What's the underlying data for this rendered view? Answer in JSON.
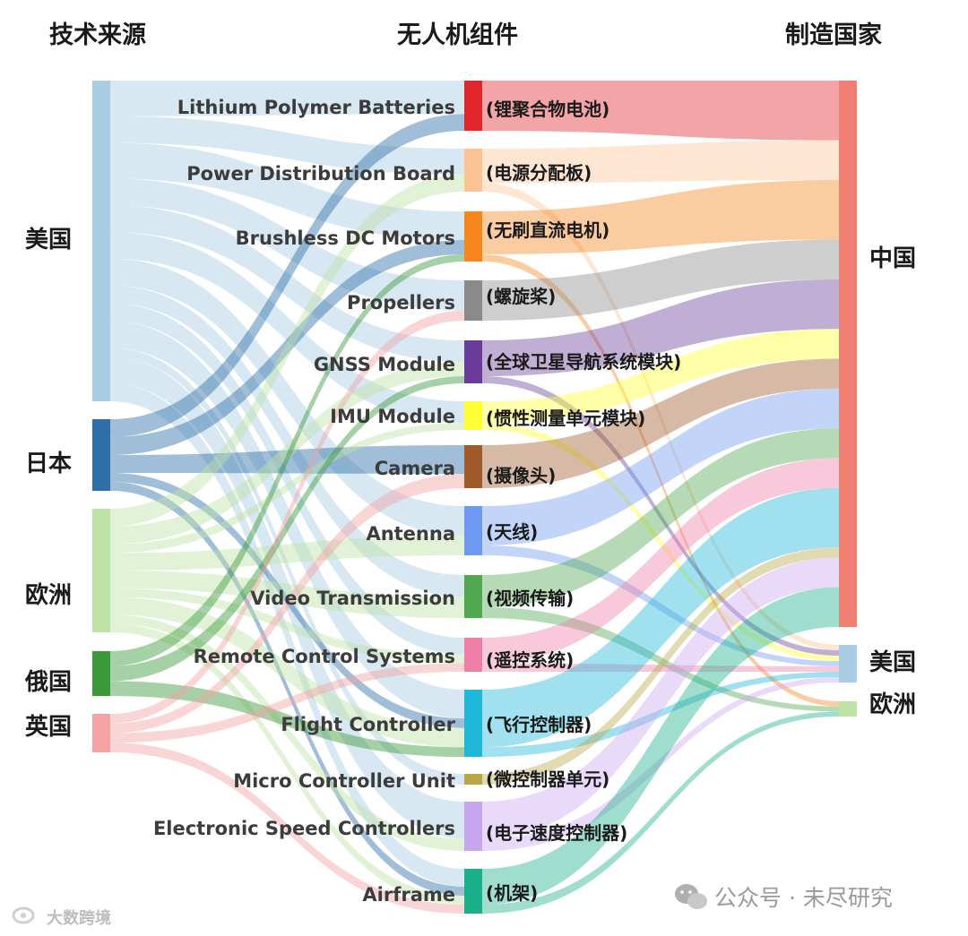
{
  "headers": {
    "source": "技术来源",
    "component": "无人机组件",
    "country": "制造国家"
  },
  "sources": [
    {
      "id": "us",
      "label": "美国",
      "color": "#a9cde3"
    },
    {
      "id": "jp",
      "label": "日本",
      "color": "#2f6fa8"
    },
    {
      "id": "eu",
      "label": "欧洲",
      "color": "#bfe3a6"
    },
    {
      "id": "ru",
      "label": "俄国",
      "color": "#3a9a3a"
    },
    {
      "id": "uk",
      "label": "英国",
      "color": "#f4a2a3"
    }
  ],
  "destinations": [
    {
      "id": "cn",
      "label": "中国",
      "color": "#f08072"
    },
    {
      "id": "us",
      "label": "美国",
      "color": "#a9cde3"
    },
    {
      "id": "eu",
      "label": "欧洲",
      "color": "#bfe3a6"
    }
  ],
  "components": [
    {
      "id": "lipo",
      "en": "Lithium Polymer Batteries",
      "cn": "(锂聚合物电池)",
      "color": "#e0262b"
    },
    {
      "id": "pdb",
      "en": "Power Distribution Board",
      "cn": "(电源分配板)",
      "color": "#fbc393"
    },
    {
      "id": "bldc",
      "en": "Brushless DC Motors",
      "cn": "(无刷直流电机)",
      "color": "#f7861e"
    },
    {
      "id": "prop",
      "en": "Propellers",
      "cn": "(螺旋桨)",
      "color": "#8a8a8a"
    },
    {
      "id": "gnss",
      "en": "GNSS Module",
      "cn": "(全球卫星导航系统模块)",
      "color": "#6a3d9a"
    },
    {
      "id": "imu",
      "en": "IMU Module",
      "cn": "(惯性测量单元模块)",
      "color": "#ffff33"
    },
    {
      "id": "cam",
      "en": "Camera",
      "cn": "(摄像头)",
      "color": "#a05a2c"
    },
    {
      "id": "ant",
      "en": "Antenna",
      "cn": "(天线)",
      "color": "#6d9af0"
    },
    {
      "id": "vtx",
      "en": "Video Transmission",
      "cn": "(视频传输)",
      "color": "#52a84f"
    },
    {
      "id": "rc",
      "en": "Remote Control Systems",
      "cn": "(遥控系统)",
      "color": "#ee7ea6"
    },
    {
      "id": "fc",
      "en": "Flight Controller",
      "cn": "(飞行控制器)",
      "color": "#1fb8d8"
    },
    {
      "id": "mcu",
      "en": "Micro Controller Unit",
      "cn": "(微控制器单元)",
      "color": "#b8a84a"
    },
    {
      "id": "esc",
      "en": "Electronic Speed Controllers",
      "cn": "(电子速度控制器)",
      "color": "#c7a6ee"
    },
    {
      "id": "frame",
      "en": "Airframe",
      "cn": "(机架)",
      "color": "#1ab08a"
    }
  ],
  "links_source_to_component": [
    {
      "from": "us",
      "to": "lipo",
      "value": 4
    },
    {
      "from": "us",
      "to": "pdb",
      "value": 3
    },
    {
      "from": "us",
      "to": "bldc",
      "value": 4
    },
    {
      "from": "us",
      "to": "prop",
      "value": 3
    },
    {
      "from": "us",
      "to": "gnss",
      "value": 3
    },
    {
      "from": "us",
      "to": "imu",
      "value": 3
    },
    {
      "from": "us",
      "to": "ant",
      "value": 3
    },
    {
      "from": "us",
      "to": "vtx",
      "value": 2
    },
    {
      "from": "us",
      "to": "rc",
      "value": 2
    },
    {
      "from": "us",
      "to": "fc",
      "value": 3
    },
    {
      "from": "us",
      "to": "mcu",
      "value": 1
    },
    {
      "from": "us",
      "to": "esc",
      "value": 3
    },
    {
      "from": "us",
      "to": "frame",
      "value": 2
    },
    {
      "from": "jp",
      "to": "lipo",
      "value": 2
    },
    {
      "from": "jp",
      "to": "bldc",
      "value": 2
    },
    {
      "from": "jp",
      "to": "cam",
      "value": 2
    },
    {
      "from": "jp",
      "to": "fc",
      "value": 1
    },
    {
      "from": "jp",
      "to": "frame",
      "value": 1
    },
    {
      "from": "eu",
      "to": "pdb",
      "value": 2
    },
    {
      "from": "eu",
      "to": "gnss",
      "value": 2
    },
    {
      "from": "eu",
      "to": "imu",
      "value": 1
    },
    {
      "from": "eu",
      "to": "ant",
      "value": 2
    },
    {
      "from": "eu",
      "to": "vtx",
      "value": 2
    },
    {
      "from": "eu",
      "to": "rc",
      "value": 1
    },
    {
      "from": "eu",
      "to": "fc",
      "value": 2
    },
    {
      "from": "eu",
      "to": "esc",
      "value": 1
    },
    {
      "from": "eu",
      "to": "frame",
      "value": 1
    },
    {
      "from": "ru",
      "to": "bldc",
      "value": 1
    },
    {
      "from": "ru",
      "to": "gnss",
      "value": 1
    },
    {
      "from": "ru",
      "to": "fc",
      "value": 1
    },
    {
      "from": "uk",
      "to": "prop",
      "value": 1
    },
    {
      "from": "uk",
      "to": "cam",
      "value": 1
    },
    {
      "from": "uk",
      "to": "rc",
      "value": 1
    },
    {
      "from": "uk",
      "to": "frame",
      "value": 1
    }
  ],
  "links_component_to_country": [
    {
      "from": "lipo",
      "to": "cn",
      "value": 6
    },
    {
      "from": "pdb",
      "to": "cn",
      "value": 4
    },
    {
      "from": "pdb",
      "to": "us",
      "value": 1
    },
    {
      "from": "bldc",
      "to": "cn",
      "value": 6
    },
    {
      "from": "bldc",
      "to": "eu",
      "value": 1
    },
    {
      "from": "prop",
      "to": "cn",
      "value": 4
    },
    {
      "from": "gnss",
      "to": "cn",
      "value": 5
    },
    {
      "from": "gnss",
      "to": "us",
      "value": 1
    },
    {
      "from": "imu",
      "to": "cn",
      "value": 3
    },
    {
      "from": "imu",
      "to": "us",
      "value": 1
    },
    {
      "from": "cam",
      "to": "cn",
      "value": 3
    },
    {
      "from": "ant",
      "to": "cn",
      "value": 4
    },
    {
      "from": "ant",
      "to": "us",
      "value": 1
    },
    {
      "from": "vtx",
      "to": "cn",
      "value": 3
    },
    {
      "from": "vtx",
      "to": "eu",
      "value": 1
    },
    {
      "from": "rc",
      "to": "cn",
      "value": 3
    },
    {
      "from": "rc",
      "to": "us",
      "value": 1
    },
    {
      "from": "fc",
      "to": "cn",
      "value": 6
    },
    {
      "from": "fc",
      "to": "us",
      "value": 1
    },
    {
      "from": "mcu",
      "to": "cn",
      "value": 1
    },
    {
      "from": "esc",
      "to": "cn",
      "value": 3
    },
    {
      "from": "esc",
      "to": "us",
      "value": 1
    },
    {
      "from": "frame",
      "to": "cn",
      "value": 4
    },
    {
      "from": "frame",
      "to": "eu",
      "value": 1
    }
  ],
  "watermark": {
    "text": "公众号 · 未尽研究",
    "logo": "wechat-icon"
  },
  "corner_watermark": {
    "text": "大数跨境"
  }
}
